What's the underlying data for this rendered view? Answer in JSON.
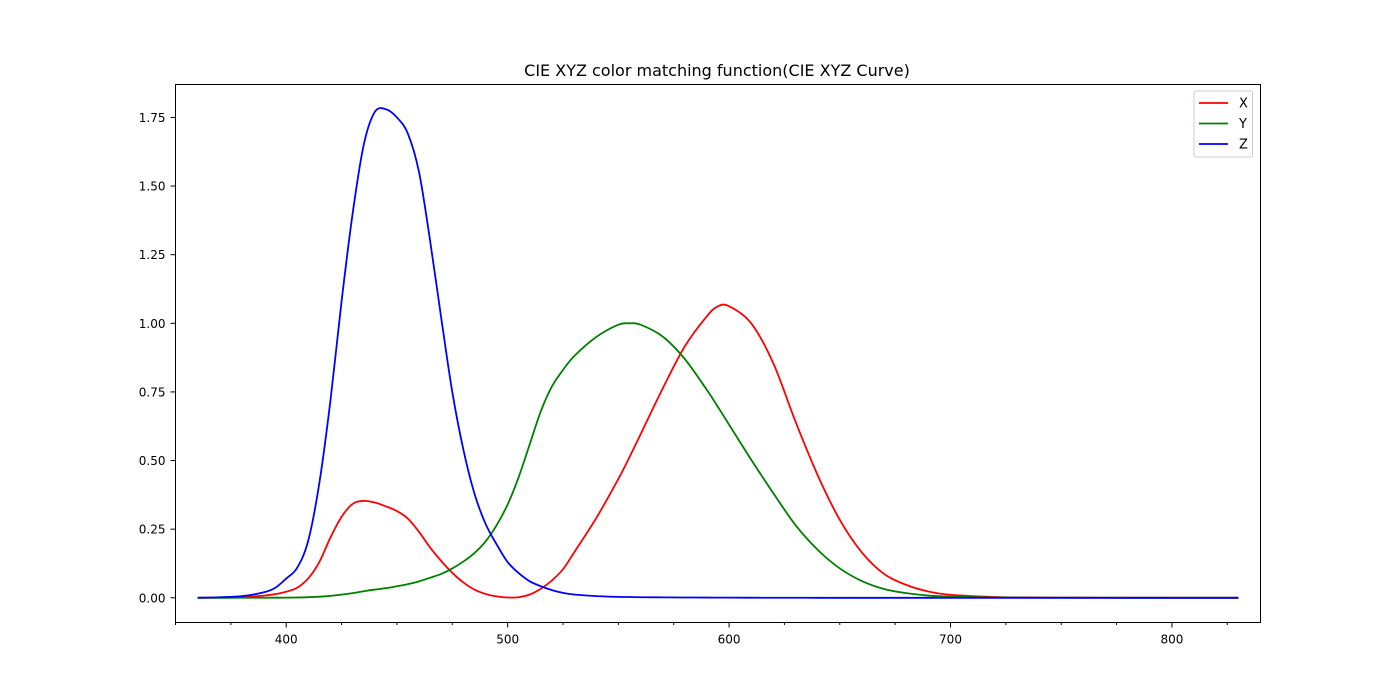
{
  "chart_data": {
    "type": "line",
    "title": "CIE XYZ color matching function(CIE XYZ Curve)",
    "xlabel": "",
    "ylabel": "",
    "xlim": [
      350,
      840
    ],
    "ylim": [
      -0.09,
      1.87
    ],
    "x_ticks": [
      400,
      500,
      600,
      700,
      800
    ],
    "x_minor_ticks": [
      350,
      375,
      425,
      450,
      475,
      525,
      550,
      575,
      625,
      650,
      675,
      725,
      750,
      775,
      825
    ],
    "y_ticks": [
      0.0,
      0.25,
      0.5,
      0.75,
      1.0,
      1.25,
      1.5,
      1.75
    ],
    "x_tick_labels": [
      "400",
      "500",
      "600",
      "700",
      "800"
    ],
    "y_tick_labels": [
      "0.00",
      "0.25",
      "0.50",
      "0.75",
      "1.00",
      "1.25",
      "1.50",
      "1.75"
    ],
    "grid": false,
    "legend": "top-right",
    "x": [
      360,
      370,
      380,
      390,
      395,
      400,
      405,
      410,
      415,
      420,
      425,
      430,
      435,
      440,
      445,
      450,
      455,
      460,
      465,
      470,
      475,
      480,
      485,
      490,
      495,
      500,
      505,
      510,
      515,
      520,
      525,
      530,
      540,
      550,
      555,
      560,
      570,
      580,
      590,
      595,
      600,
      610,
      620,
      630,
      640,
      650,
      660,
      670,
      680,
      690,
      700,
      720,
      740,
      760,
      780,
      800,
      830
    ],
    "series": [
      {
        "name": "X",
        "color": "#ff0000",
        "values": [
          0.0001,
          0.0007,
          0.0023,
          0.0078,
          0.0134,
          0.0221,
          0.037,
          0.071,
          0.131,
          0.22,
          0.295,
          0.342,
          0.353,
          0.347,
          0.333,
          0.316,
          0.288,
          0.24,
          0.183,
          0.134,
          0.091,
          0.056,
          0.03,
          0.014,
          0.005,
          0.001,
          0.002,
          0.012,
          0.033,
          0.063,
          0.104,
          0.165,
          0.29,
          0.433,
          0.512,
          0.595,
          0.762,
          0.916,
          1.026,
          1.062,
          1.062,
          1.0,
          0.854,
          0.642,
          0.447,
          0.284,
          0.165,
          0.087,
          0.047,
          0.023,
          0.011,
          0.003,
          0.001,
          0.0003,
          0.0001,
          0.0,
          0.0
        ]
      },
      {
        "name": "Y",
        "color": "#008000",
        "values": [
          0.0,
          0.0,
          0.0001,
          0.0002,
          0.0004,
          0.0007,
          0.0012,
          0.0022,
          0.004,
          0.007,
          0.0116,
          0.017,
          0.024,
          0.03,
          0.035,
          0.042,
          0.05,
          0.06,
          0.073,
          0.087,
          0.107,
          0.132,
          0.163,
          0.205,
          0.264,
          0.34,
          0.44,
          0.56,
          0.68,
          0.77,
          0.83,
          0.88,
          0.95,
          0.995,
          1.0,
          0.995,
          0.952,
          0.87,
          0.757,
          0.695,
          0.631,
          0.503,
          0.381,
          0.265,
          0.175,
          0.107,
          0.061,
          0.032,
          0.017,
          0.0082,
          0.0041,
          0.001,
          0.0002,
          0.0001,
          0.0,
          0.0,
          0.0
        ]
      },
      {
        "name": "Z",
        "color": "#0000ff",
        "values": [
          0.0001,
          0.002,
          0.006,
          0.02,
          0.036,
          0.07,
          0.11,
          0.21,
          0.42,
          0.72,
          1.08,
          1.4,
          1.65,
          1.77,
          1.78,
          1.75,
          1.69,
          1.55,
          1.3,
          1.02,
          0.75,
          0.54,
          0.38,
          0.27,
          0.195,
          0.13,
          0.09,
          0.06,
          0.042,
          0.028,
          0.018,
          0.012,
          0.006,
          0.0035,
          0.0028,
          0.0021,
          0.0015,
          0.0011,
          0.0008,
          0.0007,
          0.0006,
          0.0004,
          0.0002,
          0.0001,
          0.0,
          0.0,
          0.0,
          0.0,
          0.0,
          0.0,
          0.0,
          0.0,
          0.0,
          0.0,
          0.0,
          0.0,
          0.0
        ]
      }
    ]
  }
}
